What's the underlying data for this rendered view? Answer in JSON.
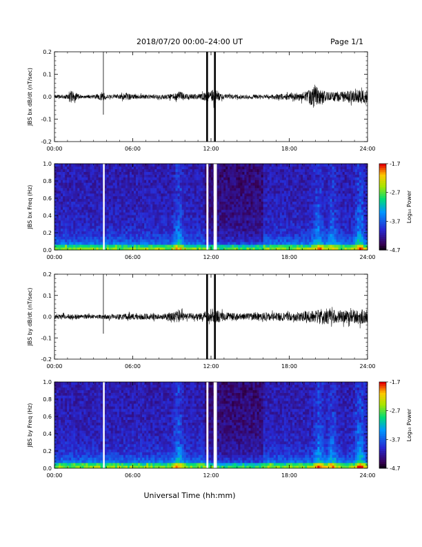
{
  "header": {
    "title": "2018/07/20  00:00–24:00 UT",
    "page": "Page 1/1"
  },
  "xaxis_label": "Universal Time (hh:mm)",
  "chart_data": [
    {
      "type": "line",
      "ylabel": "JBS bx dB/dt (nT/sec)",
      "xlim": [
        "00:00",
        "24:00"
      ],
      "ylim": [
        -0.2,
        0.2
      ],
      "x_ticks": [
        "00:00",
        "06:00",
        "12:00",
        "18:00",
        "24:00"
      ],
      "y_ticks": [
        "0.2",
        "0.1",
        "0.0",
        "-0.1",
        "-0.2"
      ],
      "series": [
        {
          "x_hours": [
            0,
            1,
            1.2,
            2,
            3,
            3.75,
            4,
            5,
            5.5,
            6,
            7,
            8,
            9,
            9.5,
            9.8,
            10,
            11,
            11.7,
            11.9,
            12.3,
            12.5,
            13,
            14,
            15,
            16,
            17,
            18,
            19,
            19.5,
            20,
            20.5,
            21,
            22,
            23,
            24
          ],
          "amplitude": [
            0.008,
            0.01,
            0.03,
            0.008,
            0.008,
            0.02,
            0.008,
            0.01,
            0.018,
            0.01,
            0.01,
            0.01,
            0.012,
            0.025,
            0.02,
            0.012,
            0.012,
            0.02,
            0.02,
            0.04,
            0.02,
            0.012,
            0.01,
            0.01,
            0.01,
            0.012,
            0.015,
            0.02,
            0.03,
            0.05,
            0.03,
            0.02,
            0.025,
            0.03,
            0.03
          ]
        }
      ],
      "spikes": [
        {
          "x_hours": 3.75,
          "top": 0.2,
          "bottom": -0.08
        },
        {
          "x_hours": 11.7,
          "top": 0.2,
          "bottom": -0.2
        },
        {
          "x_hours": 12.3,
          "top": 0.2,
          "bottom": -0.2
        }
      ]
    },
    {
      "type": "heatmap",
      "ylabel": "JBS bx Freq (Hz)",
      "xlim": [
        "00:00",
        "24:00"
      ],
      "ylim": [
        0.0,
        1.0
      ],
      "x_ticks": [
        "00:00",
        "06:00",
        "12:00",
        "18:00",
        "24:00"
      ],
      "y_ticks": [
        "1.0",
        "0.8",
        "0.6",
        "0.4",
        "0.2",
        "0.0"
      ],
      "colorbar": {
        "label": "Log₁₀ Power",
        "ticks": [
          "-1.7",
          "-2.7",
          "-3.7",
          "-4.7"
        ],
        "range": [
          -4.7,
          -1.7
        ]
      },
      "gaps_hours": [
        [
          3.72,
          3.85
        ],
        [
          11.65,
          11.8
        ],
        [
          12.2,
          12.45
        ]
      ],
      "activity": [
        {
          "x_hours": 9.5,
          "strength": 0.9
        },
        {
          "x_hours": 20.2,
          "strength": 1.0
        },
        {
          "x_hours": 21.3,
          "strength": 0.8
        },
        {
          "x_hours": 23.4,
          "strength": 1.2
        }
      ]
    },
    {
      "type": "line",
      "ylabel": "JBS by dB/dt (nT/sec)",
      "xlim": [
        "00:00",
        "24:00"
      ],
      "ylim": [
        -0.2,
        0.2
      ],
      "x_ticks": [
        "00:00",
        "06:00",
        "12:00",
        "18:00",
        "24:00"
      ],
      "y_ticks": [
        "0.2",
        "0.1",
        "0.0",
        "-0.1",
        "-0.2"
      ],
      "series": [
        {
          "x_hours": [
            0,
            1,
            2,
            3,
            3.75,
            4,
            5,
            6,
            7,
            8,
            9,
            9.5,
            9.8,
            10,
            11,
            11.7,
            12,
            12.5,
            13,
            14,
            15,
            16,
            17,
            18,
            19,
            20,
            20.5,
            21,
            22,
            23,
            24
          ],
          "amplitude": [
            0.012,
            0.012,
            0.01,
            0.01,
            0.012,
            0.012,
            0.014,
            0.015,
            0.015,
            0.016,
            0.018,
            0.035,
            0.025,
            0.016,
            0.016,
            0.02,
            0.025,
            0.03,
            0.02,
            0.016,
            0.016,
            0.018,
            0.02,
            0.02,
            0.022,
            0.03,
            0.04,
            0.035,
            0.03,
            0.035,
            0.035
          ]
        }
      ],
      "spikes": [
        {
          "x_hours": 3.75,
          "top": 0.2,
          "bottom": -0.08
        },
        {
          "x_hours": 11.7,
          "top": 0.2,
          "bottom": -0.2
        },
        {
          "x_hours": 12.3,
          "top": 0.2,
          "bottom": -0.2
        }
      ]
    },
    {
      "type": "heatmap",
      "ylabel": "JBS by Freq (Hz)",
      "xlim": [
        "00:00",
        "24:00"
      ],
      "ylim": [
        0.0,
        1.0
      ],
      "x_ticks": [
        "00:00",
        "06:00",
        "12:00",
        "18:00",
        "24:00"
      ],
      "y_ticks": [
        "1.0",
        "0.8",
        "0.6",
        "0.4",
        "0.2",
        "0.0"
      ],
      "colorbar": {
        "label": "Log₁₀ Power",
        "ticks": [
          "-1.7",
          "-2.7",
          "-3.7",
          "-4.7"
        ],
        "range": [
          -4.7,
          -1.7
        ]
      },
      "gaps_hours": [
        [
          3.72,
          3.85
        ],
        [
          11.65,
          11.8
        ],
        [
          12.2,
          12.45
        ]
      ],
      "activity": [
        {
          "x_hours": 9.5,
          "strength": 1.0
        },
        {
          "x_hours": 20.3,
          "strength": 1.0
        },
        {
          "x_hours": 21.3,
          "strength": 0.9
        },
        {
          "x_hours": 23.4,
          "strength": 1.3
        }
      ]
    }
  ]
}
